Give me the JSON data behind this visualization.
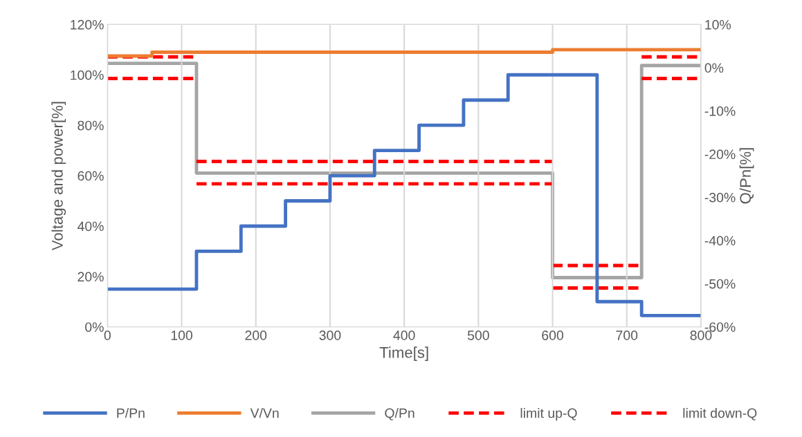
{
  "chart_data": {
    "type": "step",
    "xlabel": "Time[s]",
    "ylabel": "Voltage and power[%]",
    "y2label": "Q/Pn[%]",
    "xlim": [
      0,
      800
    ],
    "xticks": [
      0,
      100,
      200,
      300,
      400,
      500,
      600,
      700,
      800
    ],
    "ylim": [
      0,
      120
    ],
    "yticks": [
      {
        "value": 0,
        "label": "0%"
      },
      {
        "value": 20,
        "label": "20%"
      },
      {
        "value": 40,
        "label": "40%"
      },
      {
        "value": 60,
        "label": "60%"
      },
      {
        "value": 80,
        "label": "80%"
      },
      {
        "value": 100,
        "label": "100%"
      },
      {
        "value": 120,
        "label": "120%"
      }
    ],
    "y2lim": [
      -60,
      10
    ],
    "y2ticks": [
      {
        "value": -60,
        "label": "-60%"
      },
      {
        "value": -50,
        "label": "-50%"
      },
      {
        "value": -40,
        "label": "-40%"
      },
      {
        "value": -30,
        "label": "-30%"
      },
      {
        "value": -20,
        "label": "-20%"
      },
      {
        "value": -10,
        "label": "-10%"
      },
      {
        "value": 0,
        "label": "0%"
      },
      {
        "value": 10,
        "label": "10%"
      }
    ],
    "grid": "x",
    "legend": "bottom",
    "series": [
      {
        "name": "P/Pn",
        "color": "#4472c4",
        "line_style": "solid",
        "x": [
          0,
          120,
          180,
          240,
          300,
          360,
          420,
          480,
          540,
          660,
          720,
          800
        ],
        "values": [
          15,
          30,
          40,
          50,
          60,
          70,
          80,
          90,
          100,
          10,
          4.5,
          4.5
        ]
      },
      {
        "name": "V/Vn",
        "color": "#ed7d31",
        "line_style": "solid",
        "x": [
          0,
          60,
          600,
          800
        ],
        "values": [
          107.5,
          109,
          110,
          110
        ]
      },
      {
        "name": "Q/Pn",
        "color": "#a5a5a5",
        "line_style": "solid",
        "axis": "y2",
        "x": [
          0,
          120,
          600,
          720,
          800
        ],
        "values": [
          1,
          -24.4,
          -48.6,
          0.5,
          0.5
        ]
      },
      {
        "name": "limit up-Q",
        "color": "#ff0000",
        "type": "line",
        "line_style": "dashed",
        "axis": "y2",
        "x": [
          0,
          120
        ],
        "values": [
          2.5,
          2.5
        ]
      },
      {
        "name": "limit down-Q",
        "color": "#ff0000",
        "type": "line",
        "line_style": "dashed",
        "axis": "y2",
        "x": [
          0,
          120
        ],
        "values": [
          -2.5,
          -2.5
        ]
      },
      {
        "color": "#ff0000",
        "type": "line",
        "line_style": "dashed",
        "axis": "y2",
        "x": [
          120,
          600
        ],
        "values": [
          -21.7,
          -21.7
        ]
      },
      {
        "color": "#ff0000",
        "type": "line",
        "line_style": "dashed",
        "axis": "y2",
        "x": [
          120,
          600
        ],
        "values": [
          -26.9,
          -26.9
        ]
      },
      {
        "color": "#ff0000",
        "type": "line",
        "line_style": "dashed",
        "axis": "y2",
        "x": [
          600,
          720
        ],
        "values": [
          -45.8,
          -45.8
        ]
      },
      {
        "color": "#ff0000",
        "type": "line",
        "line_style": "dashed",
        "axis": "y2",
        "x": [
          600,
          720
        ],
        "values": [
          -51,
          -51
        ]
      },
      {
        "color": "#ff0000",
        "type": "line",
        "line_style": "dashed",
        "axis": "y2",
        "x": [
          720,
          800
        ],
        "values": [
          2.5,
          2.5
        ]
      },
      {
        "color": "#ff0000",
        "type": "line",
        "line_style": "dashed",
        "axis": "y2",
        "x": [
          720,
          800
        ],
        "values": [
          -2.5,
          -2.5
        ]
      }
    ]
  }
}
